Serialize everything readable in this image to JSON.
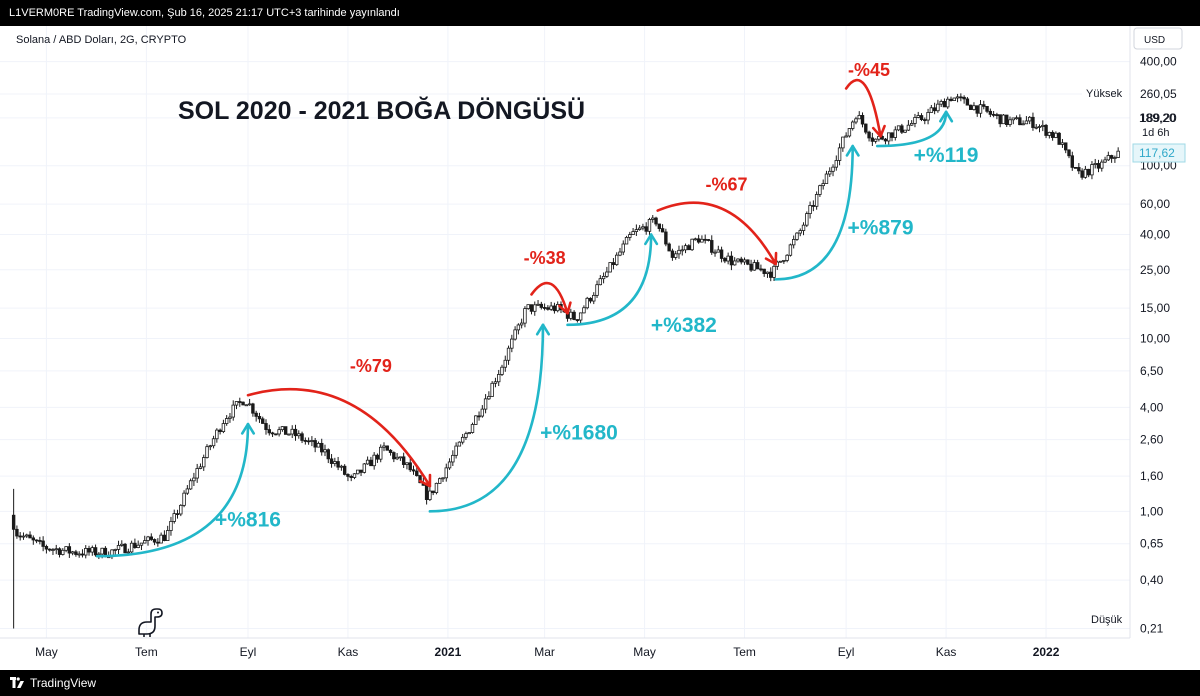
{
  "header": {
    "publish_line": "L1VERM0RE TradingView.com, Şub 16, 2025 21:17 UTC+3 tarihinde yayınlandı"
  },
  "footer": {
    "brand": "TradingView"
  },
  "chart_data": {
    "type": "candlestick",
    "symbol_label": "Solana / ABD Doları, 2G, CRYPTO",
    "title": "SOL 2020 - 2021 BOĞA DÖNGÜSÜ",
    "currency": "USD",
    "y_scale": "log",
    "ylim": [
      0.19,
      480
    ],
    "xlim": [
      "2020-04-10",
      "2022-02-20"
    ],
    "y_ticks": [
      "400,00",
      "260,05",
      "189,20",
      "100,00",
      "60,00",
      "40,00",
      "25,00",
      "15,00",
      "10,00",
      "6,50",
      "4,00",
      "2,60",
      "1,60",
      "1,00",
      "0,65",
      "0,40",
      "0,21"
    ],
    "x_ticks": [
      {
        "label": "May",
        "date": "2020-05-01",
        "bold": false
      },
      {
        "label": "Tem",
        "date": "2020-07-01",
        "bold": false
      },
      {
        "label": "Eyl",
        "date": "2020-09-01",
        "bold": false
      },
      {
        "label": "Kas",
        "date": "2020-11-01",
        "bold": false
      },
      {
        "label": "2021",
        "date": "2021-01-01",
        "bold": true
      },
      {
        "label": "Mar",
        "date": "2021-03-01",
        "bold": false
      },
      {
        "label": "May",
        "date": "2021-05-01",
        "bold": false
      },
      {
        "label": "Tem",
        "date": "2021-07-01",
        "bold": false
      },
      {
        "label": "Eyl",
        "date": "2021-09-01",
        "bold": false
      },
      {
        "label": "Kas",
        "date": "2021-11-01",
        "bold": false
      },
      {
        "label": "2022",
        "date": "2022-01-01",
        "bold": true
      }
    ],
    "price_labels": {
      "high_label": "Yüksek",
      "high_value": "260,05",
      "low_label": "Düşük",
      "low_value": "0,21",
      "current_value": "189,20",
      "countdown": "1d 6h",
      "last_value": "117,62"
    },
    "price_path": [
      [
        "2020-04-11",
        0.95
      ],
      [
        "2020-04-15",
        0.75
      ],
      [
        "2020-05-01",
        0.62
      ],
      [
        "2020-05-20",
        0.58
      ],
      [
        "2020-06-10",
        0.58
      ],
      [
        "2020-07-15",
        0.72
      ],
      [
        "2020-08-01",
        1.6
      ],
      [
        "2020-08-20",
        3.5
      ],
      [
        "2020-09-01",
        4.5
      ],
      [
        "2020-09-15",
        3.0
      ],
      [
        "2020-10-01",
        2.8
      ],
      [
        "2020-10-20",
        2.2
      ],
      [
        "2020-11-05",
        1.5
      ],
      [
        "2020-11-25",
        2.3
      ],
      [
        "2020-12-10",
        1.8
      ],
      [
        "2020-12-22",
        1.2
      ],
      [
        "2021-01-05",
        2.0
      ],
      [
        "2021-01-20",
        3.5
      ],
      [
        "2021-02-05",
        7.0
      ],
      [
        "2021-02-20",
        15.0
      ],
      [
        "2021-03-10",
        15.0
      ],
      [
        "2021-03-22",
        13.0
      ],
      [
        "2021-04-10",
        24.0
      ],
      [
        "2021-04-25",
        40.0
      ],
      [
        "2021-05-10",
        48.0
      ],
      [
        "2021-05-20",
        30.0
      ],
      [
        "2021-06-05",
        38.0
      ],
      [
        "2021-06-25",
        28.0
      ],
      [
        "2021-07-20",
        24.0
      ],
      [
        "2021-08-05",
        40.0
      ],
      [
        "2021-08-25",
        100.0
      ],
      [
        "2021-09-09",
        200.0
      ],
      [
        "2021-09-20",
        140.0
      ],
      [
        "2021-10-05",
        160.0
      ],
      [
        "2021-10-20",
        190.0
      ],
      [
        "2021-11-06",
        250.0
      ],
      [
        "2021-11-20",
        220.0
      ],
      [
        "2021-12-10",
        180.0
      ],
      [
        "2021-12-25",
        180.0
      ],
      [
        "2022-01-10",
        145.0
      ],
      [
        "2022-01-22",
        88.0
      ],
      [
        "2022-02-05",
        100.0
      ],
      [
        "2022-02-15",
        118.0
      ]
    ],
    "annotations": [
      {
        "label": "+%816",
        "kind": "gain",
        "from": [
          "2020-06-01",
          0.55
        ],
        "to": [
          "2020-09-01",
          3.2
        ],
        "label_at": [
          "2020-09-01",
          0.82
        ]
      },
      {
        "label": "-%79",
        "kind": "loss",
        "from": [
          "2020-09-01",
          4.7
        ],
        "to": [
          "2020-12-21",
          1.4
        ],
        "label_at": [
          "2020-11-15",
          6.4
        ]
      },
      {
        "label": "+%1680",
        "kind": "gain",
        "from": [
          "2020-12-21",
          1.0
        ],
        "to": [
          "2021-02-28",
          12.0
        ],
        "label_at": [
          "2021-03-22",
          2.6
        ]
      },
      {
        "label": "-%38",
        "kind": "loss",
        "from": [
          "2021-02-21",
          18.0
        ],
        "to": [
          "2021-03-15",
          14.0
        ],
        "label_at": [
          "2021-03-01",
          27.0
        ]
      },
      {
        "label": "+%382",
        "kind": "gain",
        "from": [
          "2021-03-15",
          12.0
        ],
        "to": [
          "2021-05-05",
          40.0
        ],
        "label_at": [
          "2021-05-25",
          10.9
        ]
      },
      {
        "label": "-%67",
        "kind": "loss",
        "from": [
          "2021-05-09",
          55.0
        ],
        "to": [
          "2021-07-20",
          27.0
        ],
        "label_at": [
          "2021-06-20",
          72.0
        ]
      },
      {
        "label": "+%879",
        "kind": "gain",
        "from": [
          "2021-07-20",
          22.0
        ],
        "to": [
          "2021-09-05",
          130.0
        ],
        "label_at": [
          "2021-09-22",
          40.0
        ]
      },
      {
        "label": "-%45",
        "kind": "loss",
        "from": [
          "2021-09-01",
          280.0
        ],
        "to": [
          "2021-09-22",
          148.0
        ],
        "label_at": [
          "2021-09-15",
          330.0
        ]
      },
      {
        "label": "+%119",
        "kind": "gain",
        "from": [
          "2021-09-20",
          130.0
        ],
        "to": [
          "2021-11-01",
          205.0
        ],
        "label_at": [
          "2021-11-01",
          105.0
        ]
      }
    ],
    "colors": {
      "up": "#089981",
      "down": "#f23645",
      "candle": "#1a1a1a",
      "gain": "#22b7c9",
      "loss": "#e2231a",
      "grid": "#f0f3fa"
    }
  }
}
